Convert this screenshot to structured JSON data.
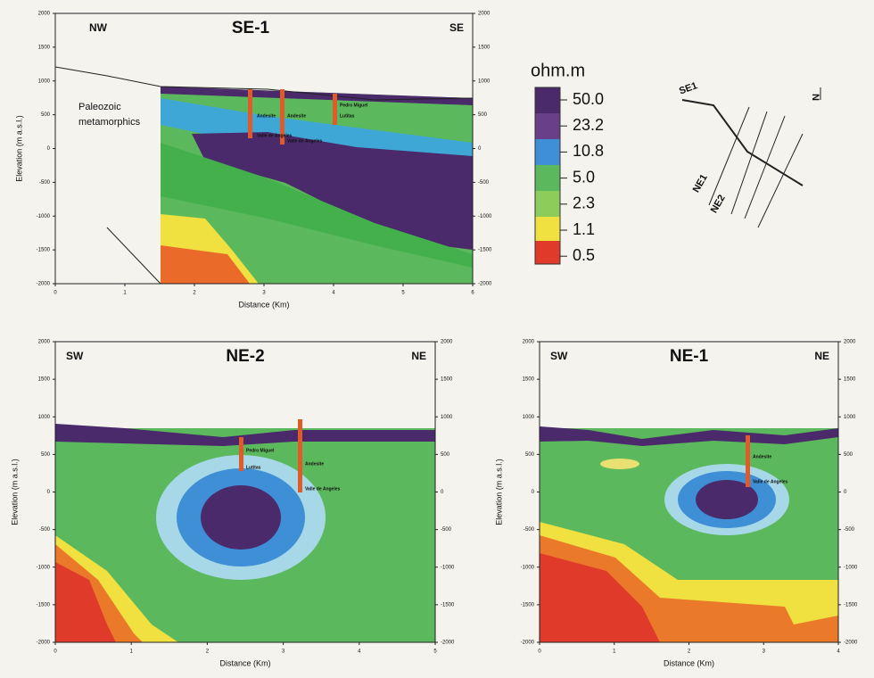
{
  "colorbar": {
    "unit": "ohm.m",
    "ticks": [
      "50.0",
      "23.2",
      "10.8",
      "5.0",
      "2.3",
      "1.1",
      "0.5"
    ]
  },
  "sections": [
    {
      "title": "SE-1",
      "left_label": "NW",
      "right_label": "SE",
      "xlabel": "Distance (Km)",
      "ylabel": "Elevation (m a.s.l.)",
      "xlim": [
        0,
        6
      ],
      "xticks": [
        0,
        1,
        2,
        3,
        4,
        5,
        6
      ],
      "ylim": [
        -2000,
        2000
      ],
      "yticks": [
        2000,
        1500,
        1000,
        500,
        0,
        -500,
        -1000,
        -1500,
        -2000
      ],
      "annotations": [
        "Paleozoic",
        "metamorphics",
        "Andesite",
        "Valle de Angeles",
        "Andesite",
        "Valle de Angeles",
        "Pedro Miguel",
        "Lutitas"
      ]
    },
    {
      "title": "NE-2",
      "left_label": "SW",
      "right_label": "NE",
      "xlabel": "Distance (Km)",
      "ylabel": "Elevation (m a.s.l.)",
      "xlim": [
        0,
        5
      ],
      "xticks": [
        0,
        1,
        2,
        3,
        4,
        5
      ],
      "ylim": [
        -2000,
        2000
      ],
      "yticks": [
        2000,
        1500,
        1000,
        500,
        0,
        -500,
        -1000,
        -1500,
        -2000
      ],
      "annotations": [
        "Pedro Miguel",
        "Lutitas",
        "Andesite",
        "Valle de Angeles"
      ]
    },
    {
      "title": "NE-1",
      "left_label": "SW",
      "right_label": "NE",
      "xlabel": "Distance (Km)",
      "ylabel": "Elevation (m a.s.l.)",
      "xlim": [
        0,
        4
      ],
      "xticks": [
        0,
        1,
        2,
        3,
        4
      ],
      "ylim": [
        -2000,
        2000
      ],
      "yticks": [
        2000,
        1500,
        1000,
        500,
        0,
        -500,
        -1000,
        -1500,
        -2000
      ],
      "annotations": [
        "Andesite",
        "Valle de Angeles"
      ]
    }
  ],
  "map": {
    "labels": [
      "SE1",
      "NE1",
      "NE2",
      "N"
    ]
  }
}
